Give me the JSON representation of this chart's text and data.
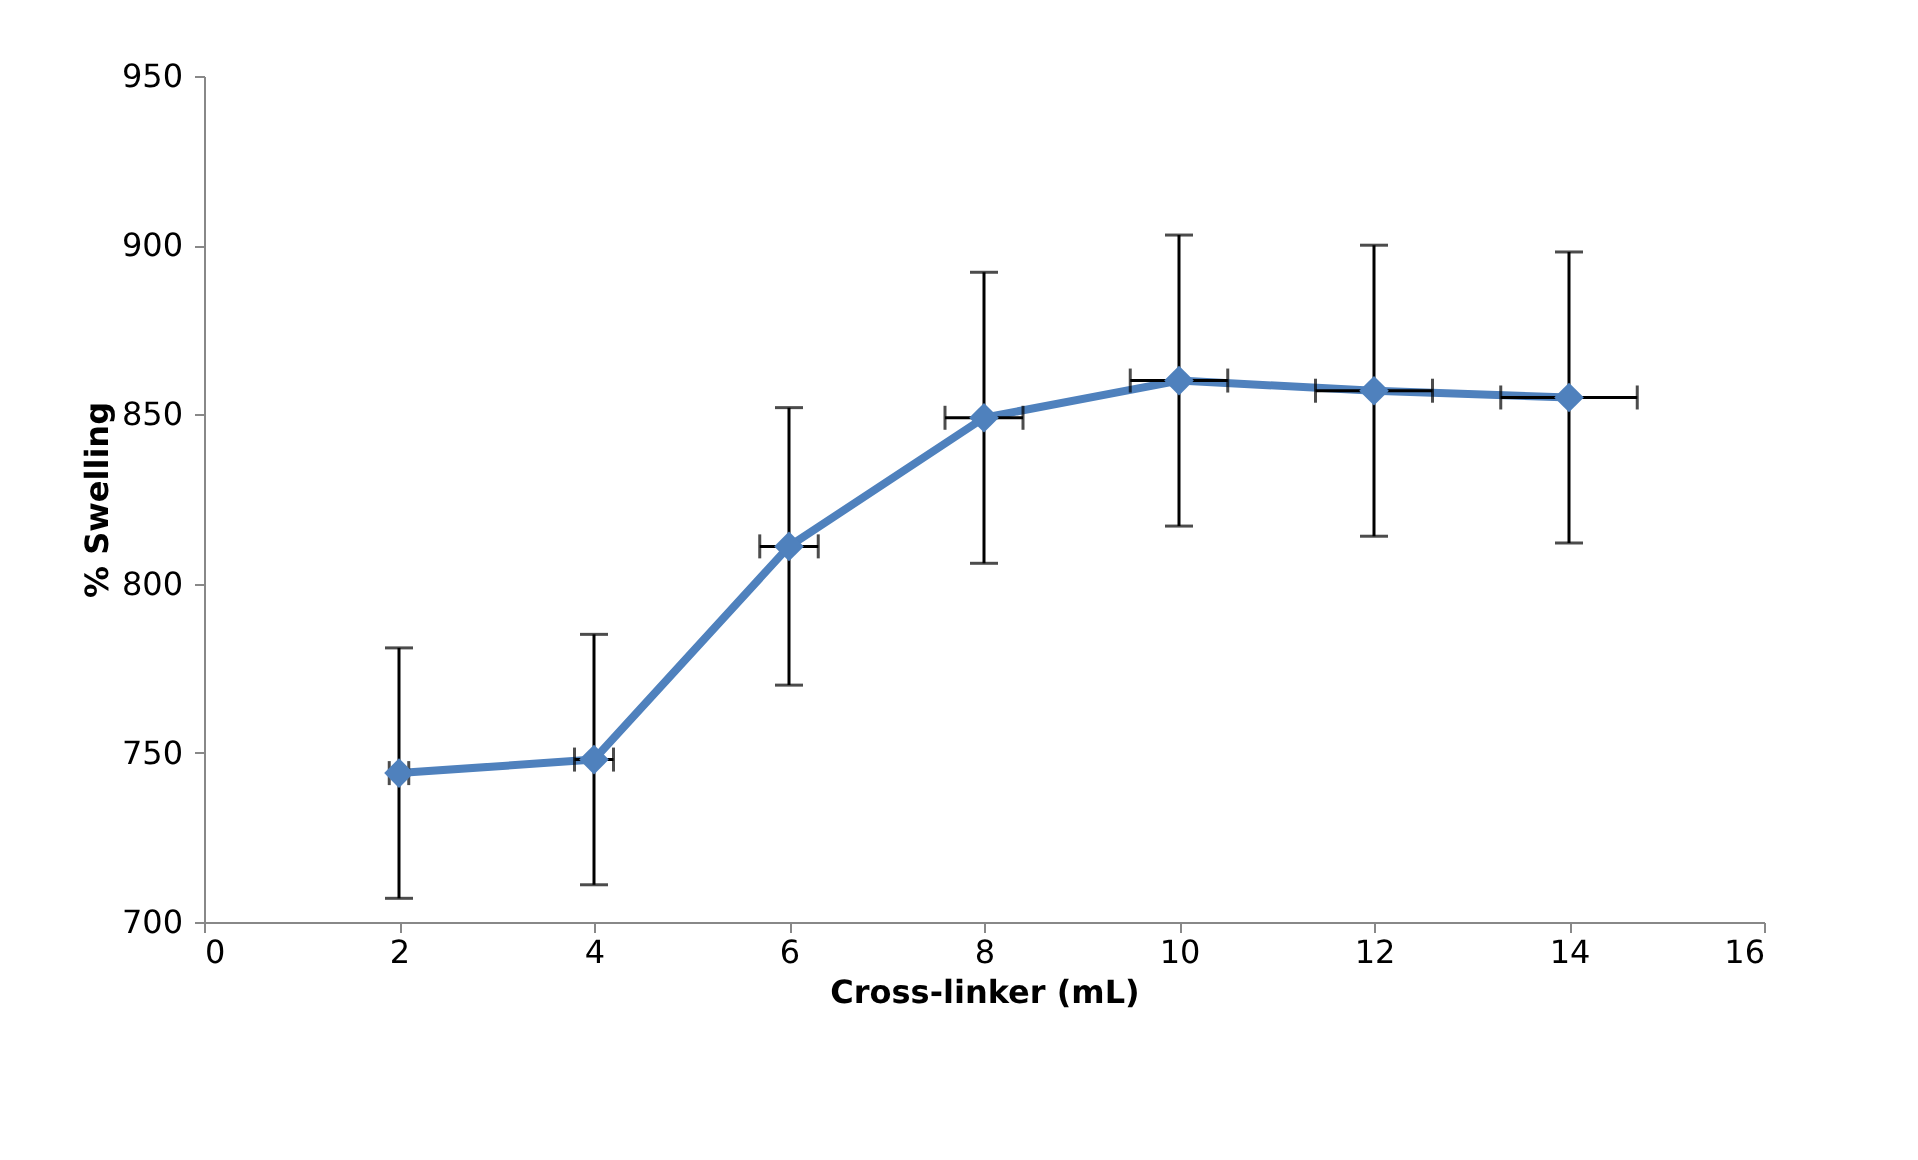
{
  "chart_data": {
    "type": "line",
    "xlabel": "Cross-linker (mL)",
    "ylabel": "% Swelling",
    "x": [
      2,
      4,
      6,
      8,
      10,
      12,
      14
    ],
    "series": [
      {
        "color": "#4f81bd",
        "values": [
          744,
          748,
          811,
          849,
          860,
          857,
          855
        ],
        "errors": [
          37,
          37,
          41,
          43,
          43,
          43,
          43
        ],
        "xerrors": [
          0.1,
          0.2,
          0.3,
          0.4,
          0.5,
          0.6,
          0.7
        ]
      }
    ],
    "xlim": [
      0,
      16
    ],
    "xticks": [
      0,
      2,
      4,
      6,
      8,
      10,
      12,
      14,
      16
    ],
    "ylim": [
      700,
      950
    ],
    "yticks": [
      700,
      750,
      800,
      850,
      900,
      950
    ],
    "grid": false,
    "marker": "diamond",
    "line_style": "solid"
  }
}
